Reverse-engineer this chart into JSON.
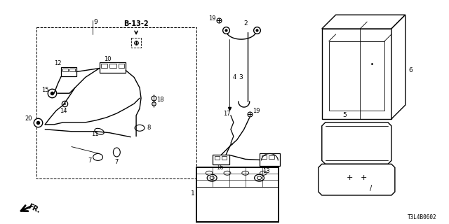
{
  "bg_color": "#ffffff",
  "part_number": "T3L4B0602",
  "figsize": [
    6.4,
    3.2
  ],
  "dpi": 100,
  "lw_main": 1.0,
  "lw_thin": 0.6,
  "lw_thick": 1.4
}
